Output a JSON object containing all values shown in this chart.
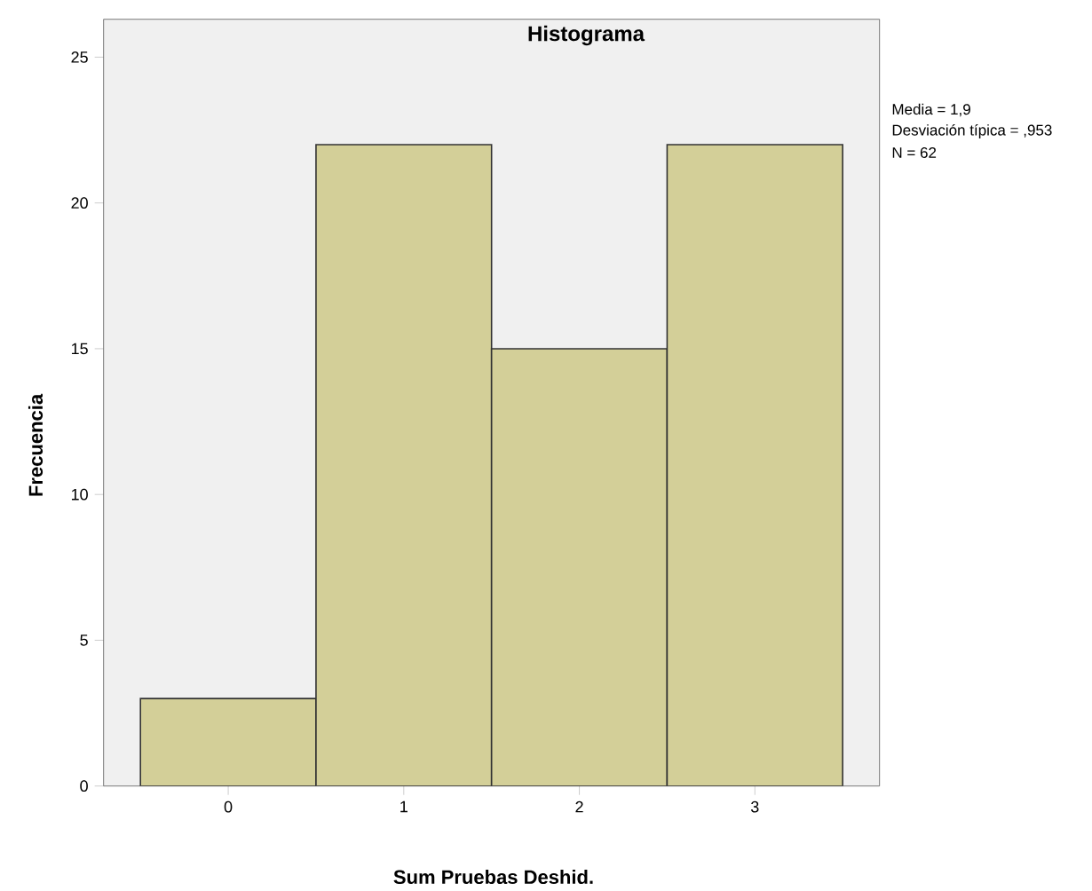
{
  "chart_data": {
    "type": "histogram",
    "title": "Histograma",
    "xlabel": "Sum Pruebas Deshid.",
    "ylabel": "Frecuencia",
    "bins": [
      -0.5,
      0.5,
      1.5,
      2.5,
      3.5
    ],
    "values": [
      3,
      22,
      15,
      22
    ],
    "color": "#d3cf98",
    "xlim": [
      -0.71,
      3.71
    ],
    "ylim": [
      0,
      26.3
    ],
    "xticks": [
      0,
      1,
      2,
      3
    ],
    "yticks": [
      0,
      5,
      10,
      15,
      20,
      25
    ],
    "grid": false,
    "annotations": [
      "Media = 1,9",
      "Desviación típica = ,953",
      "N = 62"
    ]
  }
}
